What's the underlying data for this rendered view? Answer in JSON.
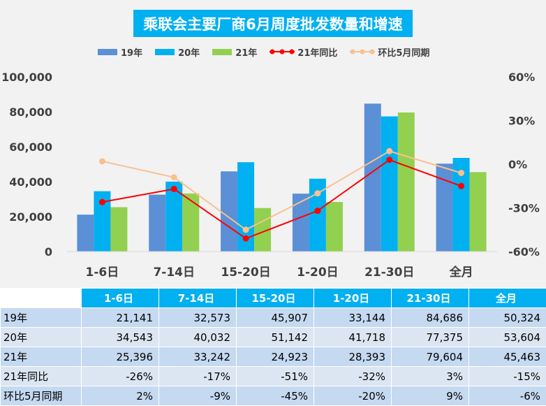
{
  "chart_data": {
    "type": "bar",
    "title": "乘联会主要厂商6月周度批发数量和增速",
    "categories": [
      "1-6日",
      "7-14日",
      "15-20日",
      "1-20日",
      "21-30日",
      "全月"
    ],
    "series": [
      {
        "name": "19年",
        "kind": "bar",
        "axis": "left",
        "values": [
          21141,
          32573,
          45907,
          33144,
          84686,
          50324
        ]
      },
      {
        "name": "20年",
        "kind": "bar",
        "axis": "left",
        "values": [
          34543,
          40032,
          51142,
          41718,
          77375,
          53604
        ]
      },
      {
        "name": "21年",
        "kind": "bar",
        "axis": "left",
        "values": [
          25396,
          33242,
          24923,
          28393,
          79604,
          45463
        ]
      },
      {
        "name": "21年同比",
        "kind": "line",
        "axis": "right",
        "values": [
          -26,
          -17,
          -51,
          -32,
          3,
          -15
        ]
      },
      {
        "name": "环比5月同期",
        "kind": "line",
        "axis": "right",
        "values": [
          2,
          -9,
          -45,
          -20,
          9,
          -6
        ]
      }
    ],
    "y_left": {
      "min": 0,
      "max": 100000,
      "ticks": [
        "0",
        "20,000",
        "40,000",
        "60,000",
        "80,000",
        "100,000"
      ]
    },
    "y_right": {
      "min": -60,
      "max": 60,
      "unit": "%",
      "ticks": [
        "-60%",
        "-30%",
        "0%",
        "30%",
        "60%"
      ]
    },
    "grid": false,
    "legend_position": "top",
    "colors": {
      "19年": "#5b8fd6",
      "20年": "#00b0f0",
      "21年": "#92d050",
      "21年同比": "#ff0000",
      "环比5月同期": "#fac090"
    }
  },
  "table": {
    "header": [
      "1-6日",
      "7-14日",
      "15-20日",
      "1-20日",
      "21-30日",
      "全月"
    ],
    "rows": [
      {
        "label": "19年",
        "cells": [
          "21,141",
          "32,573",
          "45,907",
          "33,144",
          "84,686",
          "50,324"
        ]
      },
      {
        "label": "20年",
        "cells": [
          "34,543",
          "40,032",
          "51,142",
          "41,718",
          "77,375",
          "53,604"
        ]
      },
      {
        "label": "21年",
        "cells": [
          "25,396",
          "33,242",
          "24,923",
          "28,393",
          "79,604",
          "45,463"
        ]
      },
      {
        "label": "21年同比",
        "cells": [
          "-26%",
          "-17%",
          "-51%",
          "-32%",
          "3%",
          "-15%"
        ]
      },
      {
        "label": "环比5月同期",
        "cells": [
          "2%",
          "-9%",
          "-45%",
          "-20%",
          "9%",
          "-6%"
        ]
      }
    ]
  }
}
